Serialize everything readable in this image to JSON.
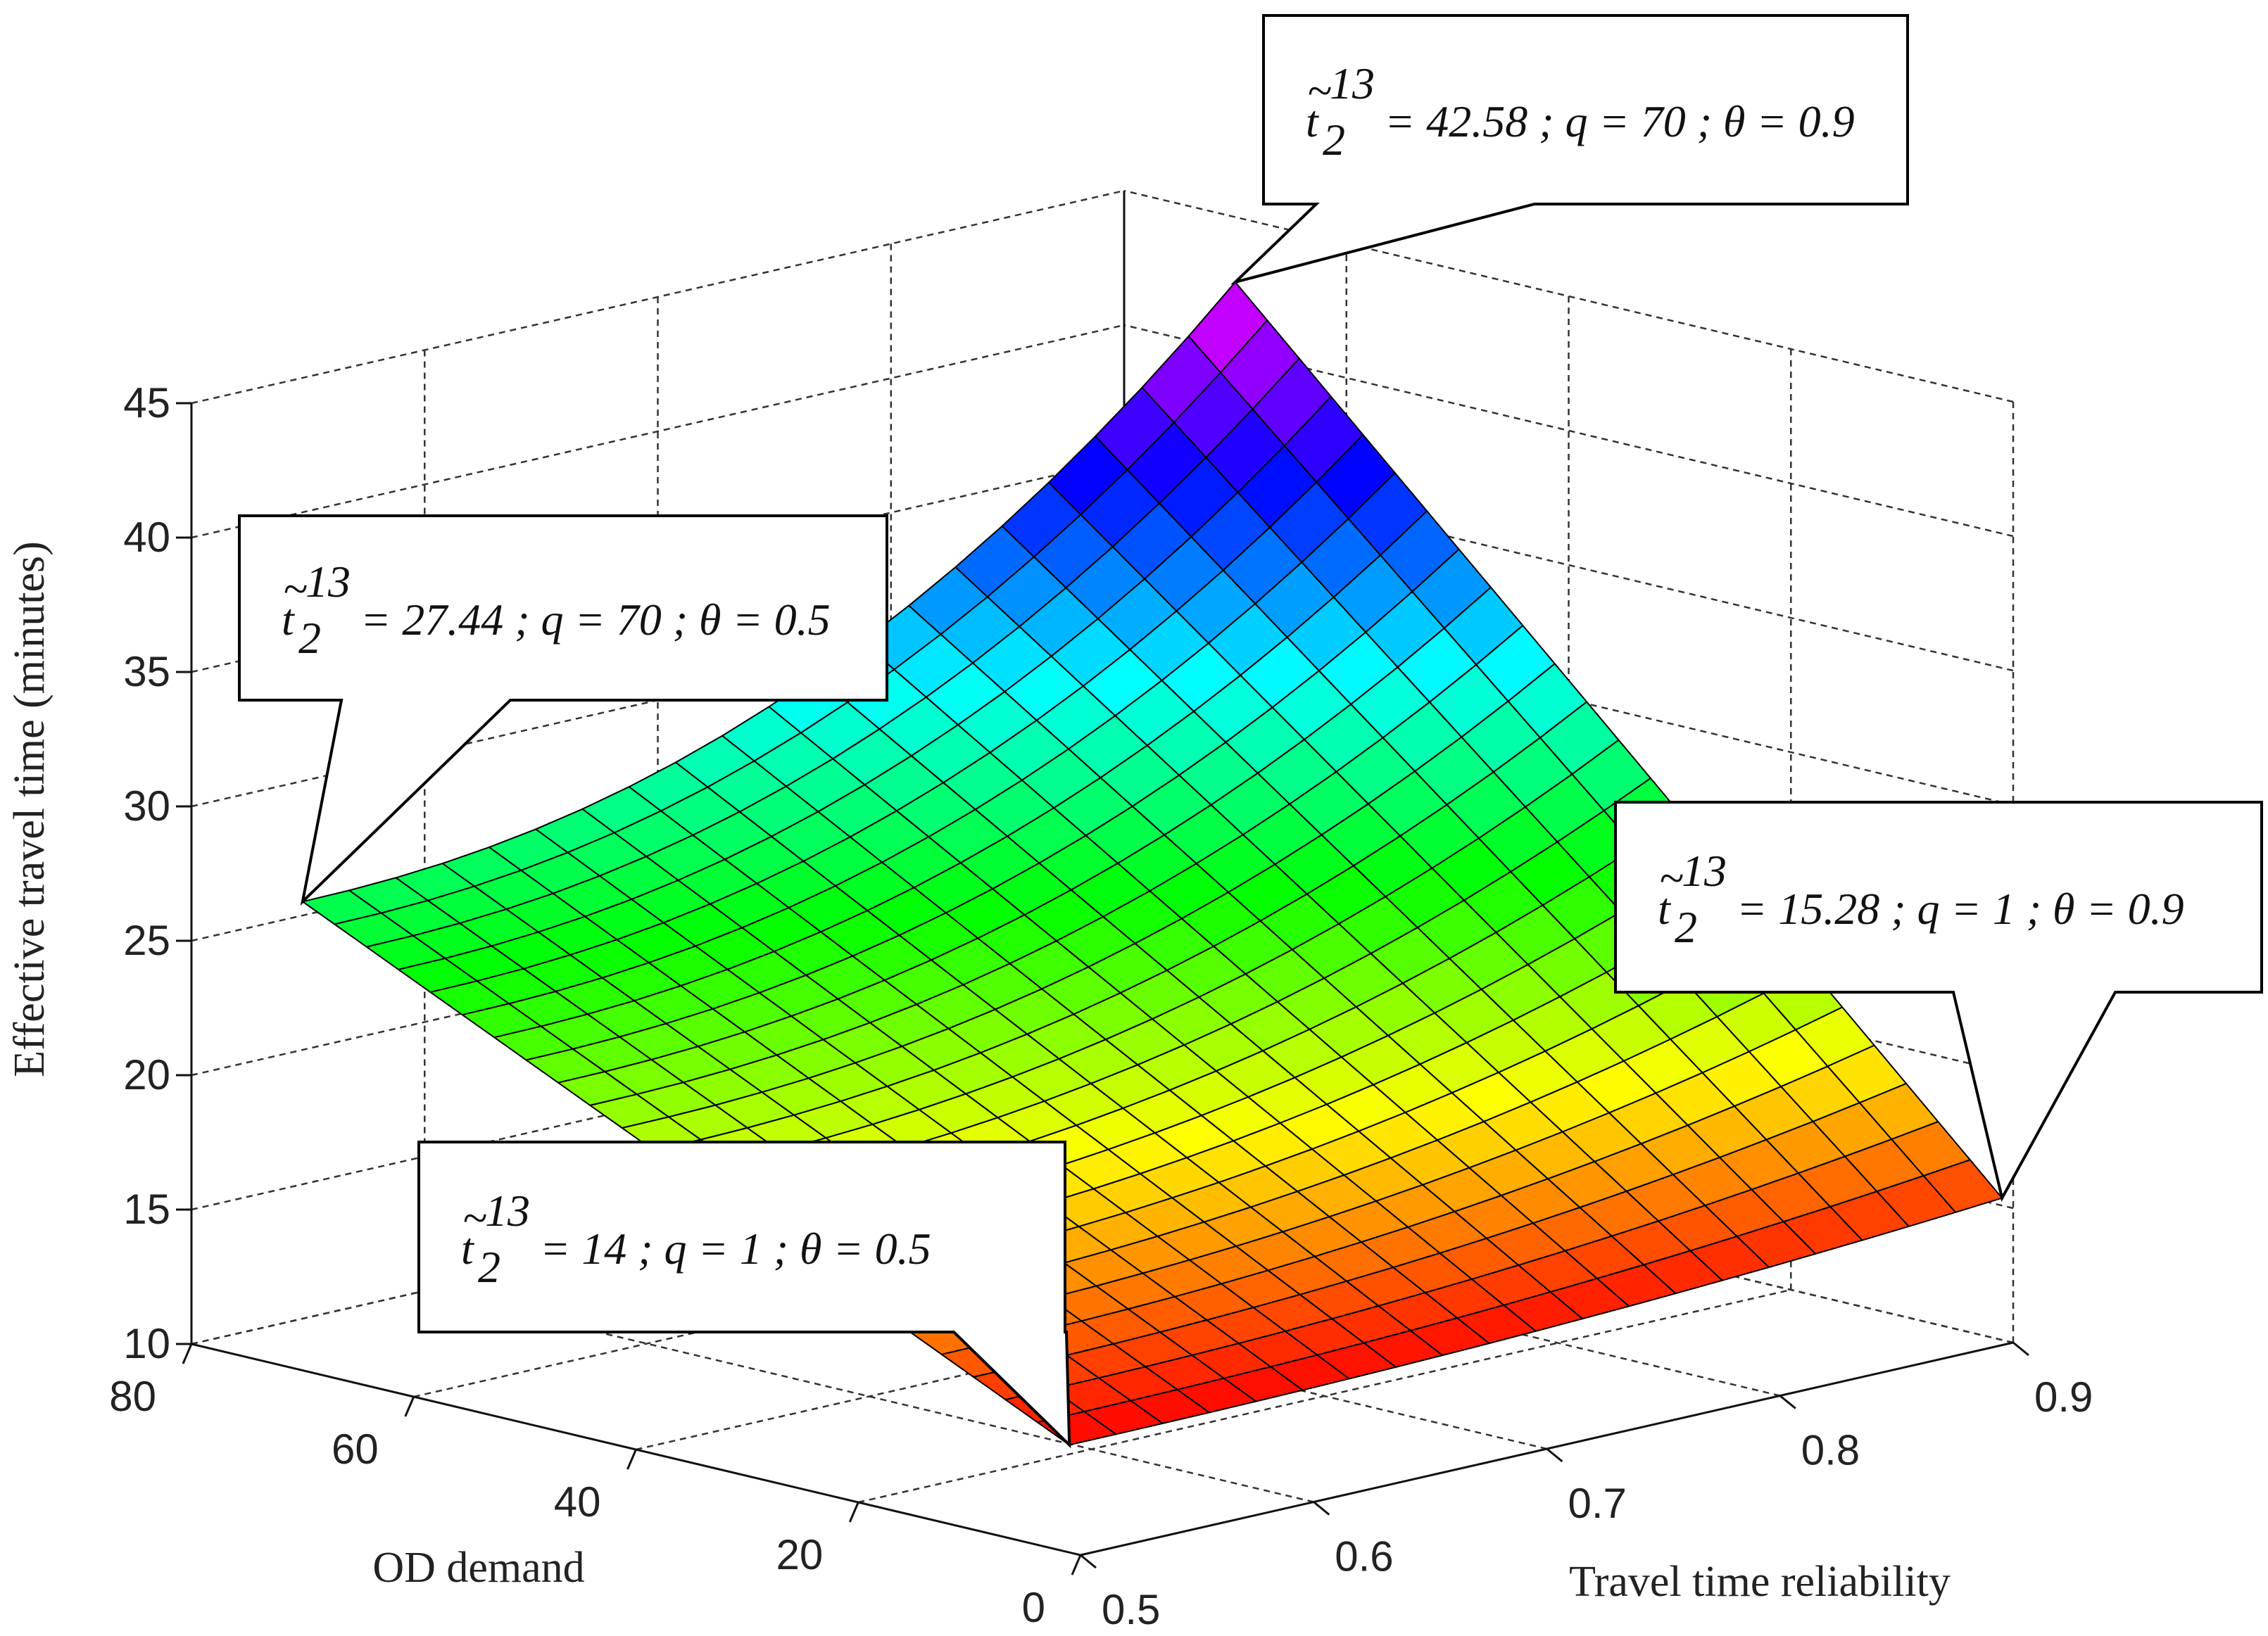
{
  "chart_data": {
    "type": "surface",
    "title": "",
    "xlabel": "Travel time reliability",
    "ylabel": "OD demand",
    "zlabel": "Effective travel time (minutes)",
    "x_ticks": [
      "0.5",
      "0.6",
      "0.7",
      "0.8",
      "0.9"
    ],
    "y_ticks": [
      "0",
      "20",
      "40",
      "60",
      "80"
    ],
    "z_ticks": [
      "10",
      "15",
      "20",
      "25",
      "30",
      "35",
      "40",
      "45"
    ],
    "xlim": [
      0.5,
      0.9
    ],
    "ylim": [
      0,
      80
    ],
    "zlim": [
      10,
      45
    ],
    "grid": true,
    "colormap": "hsv",
    "surface": {
      "theta_range": [
        0.5,
        0.9
      ],
      "q_range": [
        1,
        70
      ],
      "corners": [
        {
          "theta": 0.5,
          "q": 1,
          "value": 14
        },
        {
          "theta": 0.9,
          "q": 1,
          "value": 15.28
        },
        {
          "theta": 0.5,
          "q": 70,
          "value": 27.44
        },
        {
          "theta": 0.9,
          "q": 70,
          "value": 42.58
        }
      ]
    },
    "annotations": [
      {
        "name": "top-right",
        "base": "t",
        "sub": "2",
        "sup": "13",
        "rest": "= 42.58 ; q = 70 ; θ = 0.9",
        "theta": 0.9,
        "q": 70,
        "value": 42.58
      },
      {
        "name": "left",
        "base": "t",
        "sub": "2",
        "sup": "13",
        "rest": "= 27.44 ; q = 70 ; θ = 0.5",
        "theta": 0.5,
        "q": 70,
        "value": 27.44
      },
      {
        "name": "right",
        "base": "t",
        "sub": "2",
        "sup": "13",
        "rest": "= 15.28 ; q = 1 ; θ = 0.9",
        "theta": 0.9,
        "q": 1,
        "value": 15.28
      },
      {
        "name": "bottom",
        "base": "t",
        "sub": "2",
        "sup": "13",
        "rest": "= 14 ; q = 1 ; θ = 0.5",
        "theta": 0.5,
        "q": 1,
        "value": 14
      }
    ]
  }
}
